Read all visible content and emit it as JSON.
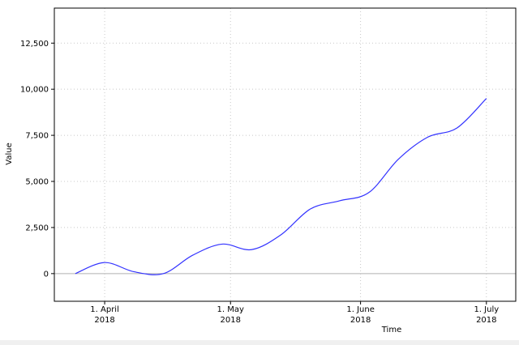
{
  "chart_data": {
    "type": "line",
    "x_label": "Time",
    "y_label": "Value",
    "x": [
      "2018-03-25",
      "2018-04-01",
      "2018-04-08",
      "2018-04-15",
      "2018-04-22",
      "2018-04-29",
      "2018-05-06",
      "2018-05-13",
      "2018-05-20",
      "2018-05-27",
      "2018-06-03",
      "2018-06-10",
      "2018-06-17",
      "2018-06-24",
      "2018-07-01"
    ],
    "values": [
      0,
      600,
      100,
      0,
      1000,
      1600,
      1300,
      2100,
      3500,
      3950,
      4400,
      6200,
      7400,
      7900,
      9500
    ],
    "color": "#3333ff",
    "xlim": [
      "2018-03-20",
      "2018-07-08"
    ],
    "xticks": [
      {
        "value": "2018-04-01",
        "label": "1. April\n2018"
      },
      {
        "value": "2018-05-01",
        "label": "1. May\n2018"
      },
      {
        "value": "2018-06-01",
        "label": "1. June\n2018"
      },
      {
        "value": "2018-07-01",
        "label": "1. July\n2018"
      }
    ],
    "ylim": [
      -1500,
      14400
    ],
    "yticks": [
      0,
      {
        "value": 2500,
        "label": "2,500"
      },
      {
        "value": 5000,
        "label": "5,000"
      },
      {
        "value": 7500,
        "label": "7,500"
      },
      {
        "value": 10000,
        "label": "10,000"
      },
      {
        "value": 12500,
        "label": "12,500"
      }
    ],
    "grid": true,
    "smooth": true
  }
}
